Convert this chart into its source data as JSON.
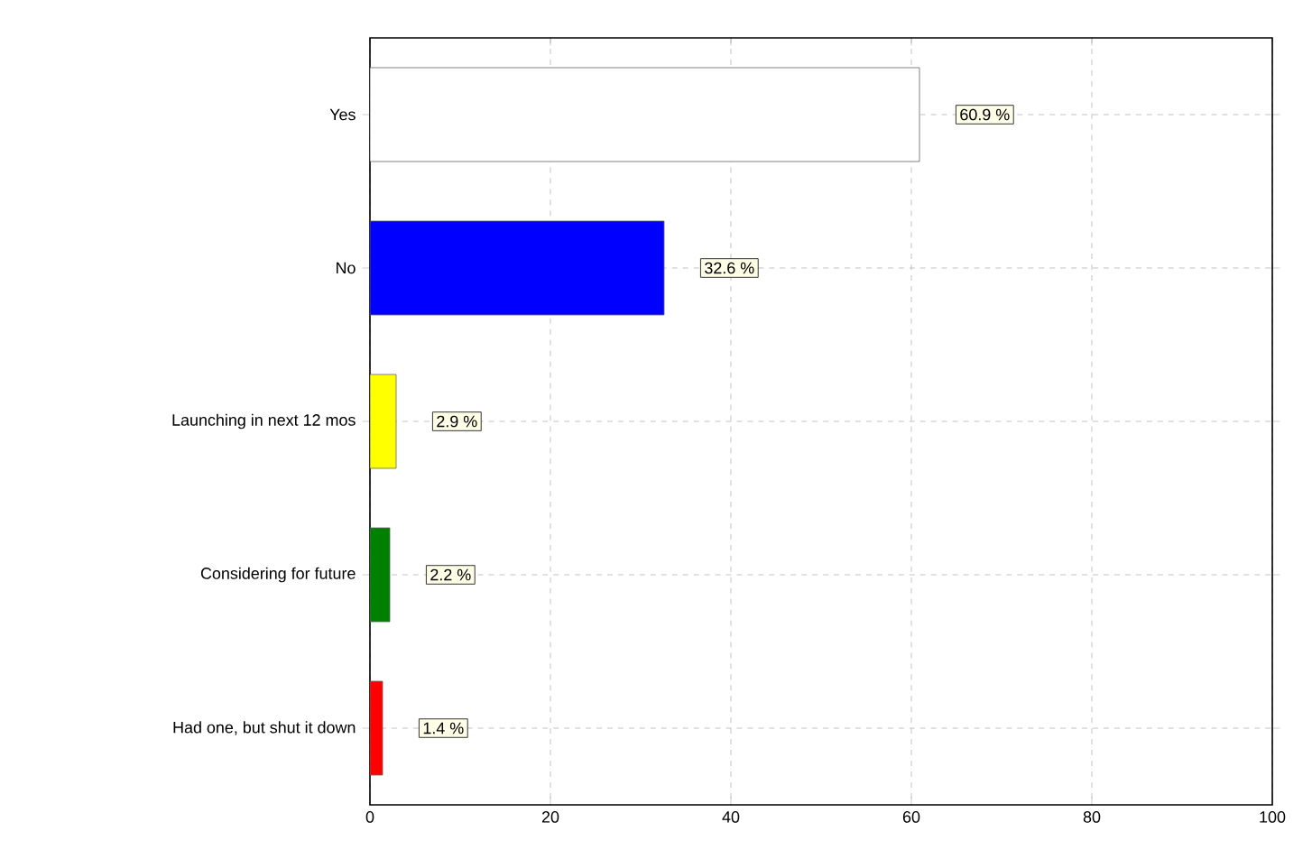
{
  "chart_data": {
    "type": "bar",
    "orientation": "horizontal",
    "categories": [
      "Yes",
      "No",
      "Launching in next 12 mos",
      "Considering for future",
      "Had one, but shut it down"
    ],
    "values": [
      60.9,
      32.6,
      2.9,
      2.2,
      1.4
    ],
    "colors": [
      "#ffffff",
      "#0000ff",
      "#ffff00",
      "#008000",
      "#ff0000"
    ],
    "value_labels": [
      "60.9 %",
      "32.6 %",
      "2.9 %",
      "2.2 %",
      "1.4 %"
    ],
    "xlim": [
      0,
      100
    ],
    "xticks": [
      0,
      20,
      40,
      60,
      80,
      100
    ],
    "grid": true
  }
}
